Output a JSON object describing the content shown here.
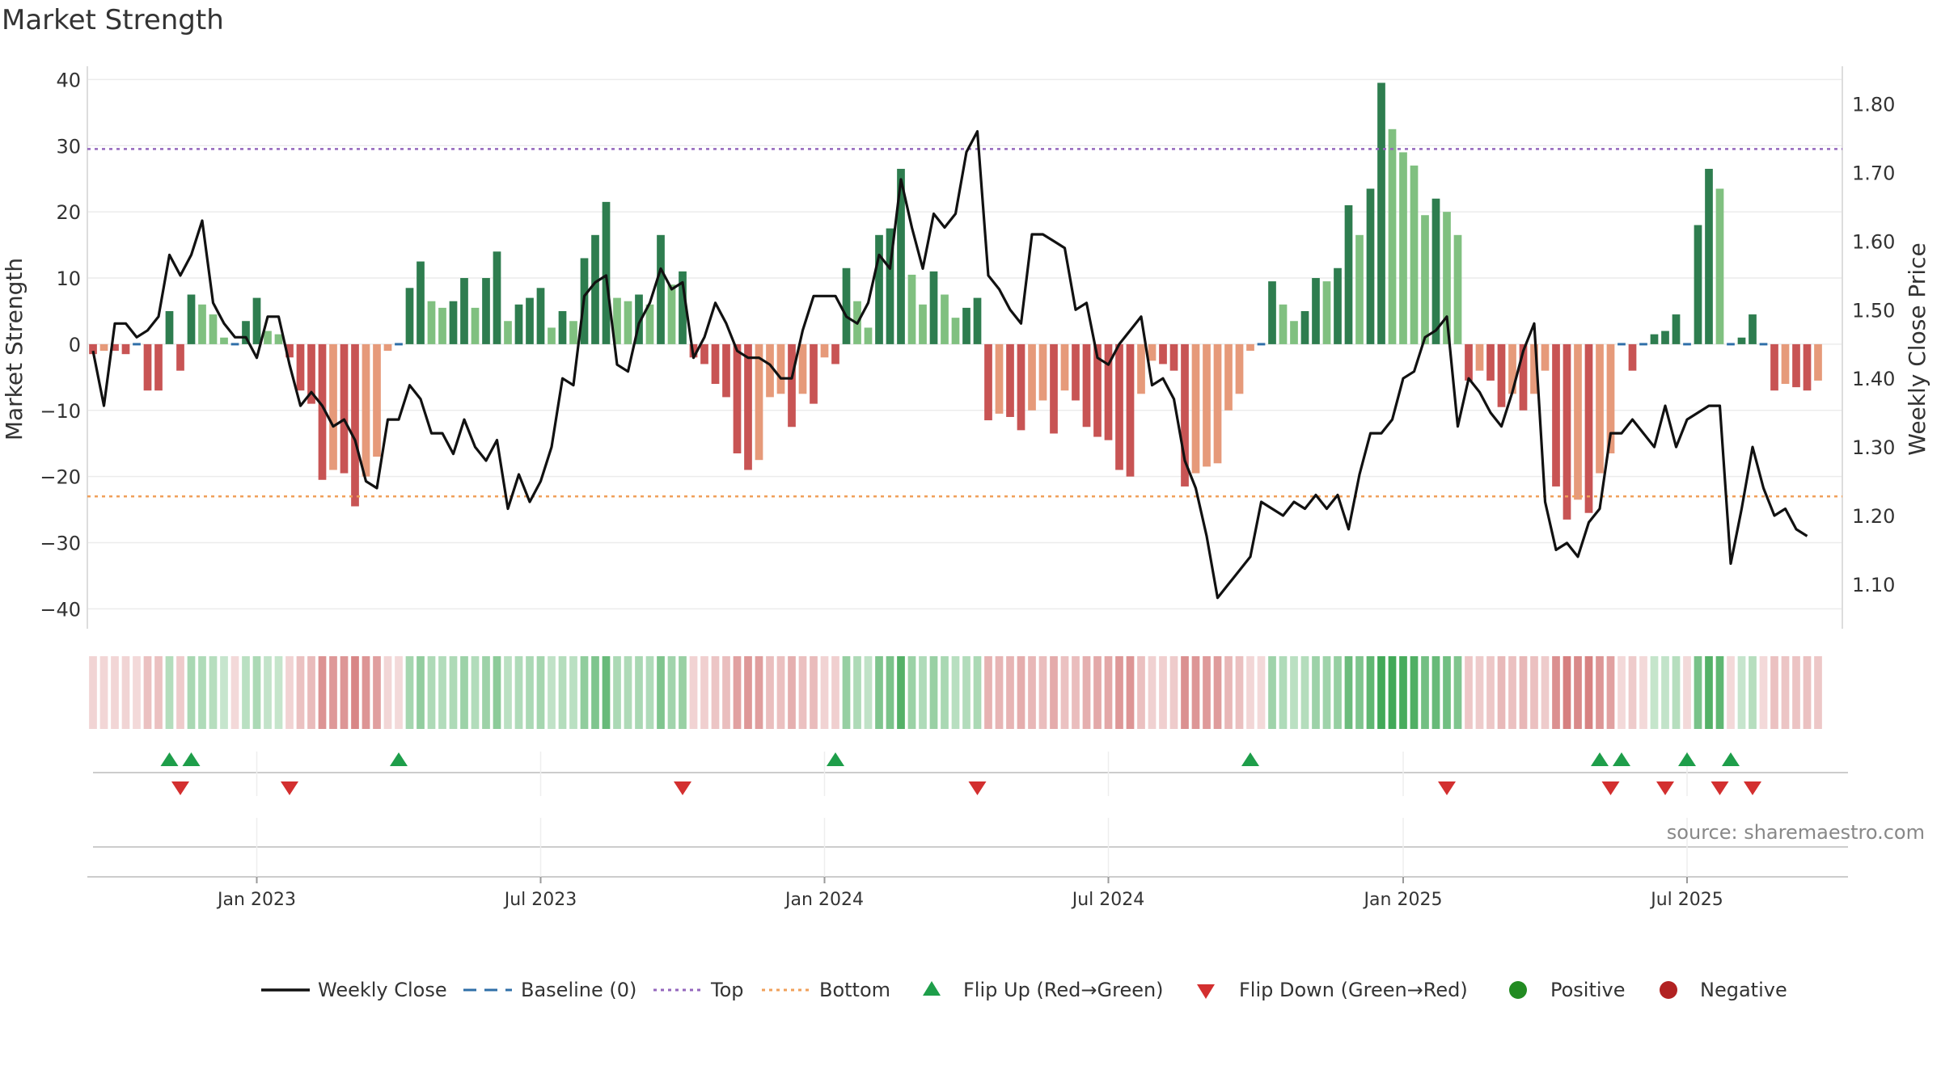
{
  "title": "Market Strength",
  "source": "source: sharemaestro.com",
  "chart_data": {
    "type": "bar+line",
    "title": "Market Strength",
    "left_axis": {
      "label": "Market Strength",
      "ylim": [
        -43,
        42
      ],
      "ticks": [
        40,
        30,
        20,
        10,
        0,
        -10,
        -20,
        -30,
        -40
      ],
      "tick_labels": [
        "40",
        "30",
        "20",
        "10",
        "0",
        "−10",
        "−20",
        "−30",
        "−40"
      ]
    },
    "right_axis": {
      "label": "Weekly Close Price",
      "ylim": [
        1.035,
        1.855
      ],
      "ticks": [
        1.8,
        1.7,
        1.6,
        1.5,
        1.4,
        1.3,
        1.2,
        1.1
      ],
      "tick_labels": [
        "1.80",
        "1.70",
        "1.60",
        "1.50",
        "1.40",
        "1.30",
        "1.20",
        "1.10"
      ]
    },
    "x_axis": {
      "week_range": [
        0,
        160
      ],
      "ticks": [
        {
          "week": 15,
          "label": "Jan 2023"
        },
        {
          "week": 41,
          "label": "Jul 2023"
        },
        {
          "week": 67,
          "label": "Jan 2024"
        },
        {
          "week": 93,
          "label": "Jul 2024"
        },
        {
          "week": 120,
          "label": "Jan 2025"
        },
        {
          "week": 146,
          "label": "Jul 2025"
        }
      ]
    },
    "top_line": 29.5,
    "bottom_line": -23,
    "strength_values": [
      -1.5,
      -1,
      -1,
      -1.5,
      0,
      -7,
      -7,
      5,
      -4,
      7.5,
      6,
      4.5,
      1,
      0,
      3.5,
      7,
      2,
      1.5,
      -2,
      -7,
      -9,
      -20.5,
      -19,
      -19.5,
      -24.5,
      -20,
      -17,
      -1,
      0,
      8.5,
      12.5,
      6.5,
      5.5,
      6.5,
      10,
      5.5,
      10,
      14,
      3.5,
      6,
      7,
      8.5,
      2.5,
      5,
      3.5,
      13,
      16.5,
      21.5,
      7,
      6.5,
      7.5,
      6,
      16.5,
      9,
      11,
      -2,
      -3,
      -6,
      -8,
      -16.5,
      -19,
      -17.5,
      -8,
      -7.5,
      -12.5,
      -7.5,
      -9,
      -2,
      -3,
      11.5,
      6.5,
      2.5,
      16.5,
      17.5,
      26.5,
      10.5,
      6,
      11,
      7.5,
      4,
      5.5,
      7,
      -11.5,
      -10.5,
      -11,
      -13,
      -10,
      -8.5,
      -13.5,
      -7,
      -8.5,
      -12.5,
      -14,
      -14.5,
      -19,
      -20,
      -7.5,
      -2.5,
      -3,
      -4,
      -21.5,
      -19.5,
      -18.5,
      -18,
      -10,
      -7.5,
      -1,
      0,
      9.5,
      6,
      3.5,
      5,
      10,
      9.5,
      11.5,
      21,
      16.5,
      23.5,
      39.5,
      32.5,
      29,
      27,
      19.5,
      22,
      20,
      16.5,
      -5.5,
      -4,
      -5.5,
      -9.5,
      -7.5,
      -10,
      -7.5,
      -4,
      -21.5,
      -26.5,
      -23.5,
      -25.5,
      -19.5,
      -16.5,
      0,
      -4,
      0,
      1.5,
      2,
      4.5,
      0,
      18,
      26.5,
      23.5,
      0,
      1,
      4.5,
      0,
      -7,
      -6,
      -6.5,
      -7,
      -5.5
    ],
    "close_values": [
      1.44,
      1.36,
      1.48,
      1.48,
      1.46,
      1.47,
      1.49,
      1.58,
      1.55,
      1.58,
      1.63,
      1.51,
      1.48,
      1.46,
      1.46,
      1.43,
      1.49,
      1.49,
      1.42,
      1.36,
      1.38,
      1.36,
      1.33,
      1.34,
      1.31,
      1.25,
      1.24,
      1.34,
      1.34,
      1.39,
      1.37,
      1.32,
      1.32,
      1.29,
      1.34,
      1.3,
      1.28,
      1.31,
      1.21,
      1.26,
      1.22,
      1.25,
      1.3,
      1.4,
      1.39,
      1.52,
      1.54,
      1.55,
      1.42,
      1.41,
      1.48,
      1.51,
      1.56,
      1.53,
      1.54,
      1.43,
      1.46,
      1.51,
      1.48,
      1.44,
      1.43,
      1.43,
      1.42,
      1.4,
      1.4,
      1.47,
      1.52,
      1.52,
      1.52,
      1.49,
      1.48,
      1.51,
      1.58,
      1.56,
      1.69,
      1.62,
      1.56,
      1.64,
      1.62,
      1.64,
      1.73,
      1.76,
      1.55,
      1.53,
      1.5,
      1.48,
      1.61,
      1.61,
      1.6,
      1.59,
      1.5,
      1.51,
      1.43,
      1.42,
      1.45,
      1.47,
      1.49,
      1.39,
      1.4,
      1.37,
      1.28,
      1.24,
      1.17,
      1.08,
      1.1,
      1.12,
      1.14,
      1.22,
      1.21,
      1.2,
      1.22,
      1.21,
      1.23,
      1.21,
      1.23,
      1.18,
      1.26,
      1.32,
      1.32,
      1.34,
      1.4,
      1.41,
      1.46,
      1.47,
      1.49,
      1.33,
      1.4,
      1.38,
      1.35,
      1.33,
      1.38,
      1.44,
      1.48,
      1.22,
      1.15,
      1.16,
      1.14,
      1.19,
      1.21,
      1.32,
      1.32,
      1.34,
      1.32,
      1.3,
      1.36,
      1.3,
      1.34,
      1.35,
      1.36,
      1.36,
      1.13,
      1.21,
      1.3,
      1.24,
      1.2,
      1.21,
      1.18,
      1.17
    ],
    "flip_up_weeks": [
      7,
      9,
      28,
      68,
      106,
      138,
      140,
      146,
      150
    ],
    "flip_down_weeks": [
      8,
      18,
      54,
      81,
      124,
      139,
      144,
      149,
      152
    ],
    "legend": [
      "Weekly Close",
      "Baseline (0)",
      "Top",
      "Bottom",
      "Flip Up (Red→Green)",
      "Flip Down (Green→Red)",
      "Positive",
      "Negative"
    ],
    "legend_placement": "bottom-center",
    "colors": {
      "dark_green": "#2e7d4f",
      "light_green": "#80c080",
      "dark_red": "#c85454",
      "light_red": "#e69a7a",
      "line": "#111111",
      "baseline": "#2f6fa8",
      "top": "#9467bd",
      "bottom": "#f0a05a",
      "flip_up": "#1e9e4a",
      "flip_down": "#d32f2f",
      "positive": "#228b22",
      "negative": "#b22222"
    }
  }
}
